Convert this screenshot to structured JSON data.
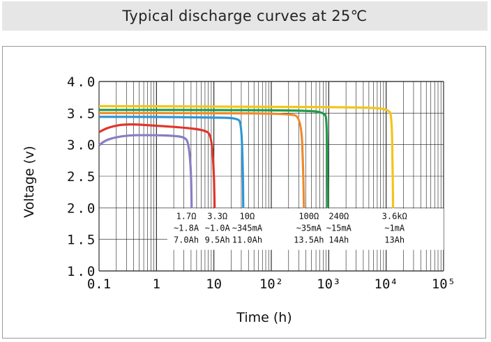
{
  "header": {
    "title": "Typical discharge curves at 25℃"
  },
  "colors": {
    "purple": "#8a7cc4",
    "red": "#e0352b",
    "blue": "#2e96d6",
    "orange": "#ee8a2a",
    "green": "#1f9a4a",
    "yellow": "#f3c41a",
    "grid": "#1a1a1a"
  },
  "chart_data": {
    "type": "line",
    "title": "Typical discharge curves at 25℃",
    "xlabel": "Time (h)",
    "ylabel": "Voltage (v)",
    "xscale": "log",
    "xlim": [
      0.1,
      100000
    ],
    "ylim": [
      1.0,
      4.0
    ],
    "x_tick_labels": [
      "0.1",
      "1",
      "10",
      "10²",
      "10³",
      "10⁴",
      "10⁵"
    ],
    "y_tick_labels": [
      "4.0",
      "3.5",
      "3.0",
      "2.5",
      "2.0",
      "1.5",
      "1.0"
    ],
    "series": [
      {
        "name": "1.7Ω ~1.8A 7.0Ah",
        "color": "purple",
        "points": [
          [
            0.1,
            2.99
          ],
          [
            0.13,
            3.07
          ],
          [
            0.2,
            3.12
          ],
          [
            0.35,
            3.15
          ],
          [
            0.6,
            3.15
          ],
          [
            1.0,
            3.15
          ],
          [
            2.0,
            3.14
          ],
          [
            3.0,
            3.12
          ],
          [
            3.6,
            3.05
          ],
          [
            4.0,
            2.6
          ],
          [
            4.1,
            2.0
          ]
        ]
      },
      {
        "name": "3.3Ω ~1.0A 9.5Ah",
        "color": "red",
        "points": [
          [
            0.1,
            3.2
          ],
          [
            0.15,
            3.28
          ],
          [
            0.3,
            3.33
          ],
          [
            1.0,
            3.3
          ],
          [
            3.0,
            3.27
          ],
          [
            7.0,
            3.23
          ],
          [
            9.0,
            3.15
          ],
          [
            10.0,
            2.6
          ],
          [
            10.3,
            2.0
          ]
        ]
      },
      {
        "name": "10Ω ~345mA 11.0Ah",
        "color": "blue",
        "points": [
          [
            0.1,
            3.44
          ],
          [
            1.0,
            3.44
          ],
          [
            10.0,
            3.43
          ],
          [
            25.0,
            3.42
          ],
          [
            30.0,
            3.35
          ],
          [
            32.0,
            2.6
          ],
          [
            32.5,
            2.0
          ]
        ]
      },
      {
        "name": "100Ω ~35mA 13.5Ah",
        "color": "orange",
        "points": [
          [
            0.1,
            3.5
          ],
          [
            10.0,
            3.5
          ],
          [
            200.0,
            3.49
          ],
          [
            330.0,
            3.44
          ],
          [
            360.0,
            2.6
          ],
          [
            370.0,
            2.0
          ]
        ]
      },
      {
        "name": "240Ω ~15mA 14Ah",
        "color": "green",
        "points": [
          [
            0.1,
            3.55
          ],
          [
            10.0,
            3.55
          ],
          [
            500.0,
            3.54
          ],
          [
            850.0,
            3.5
          ],
          [
            920.0,
            3.4
          ],
          [
            950.0,
            2.6
          ],
          [
            960.0,
            2.0
          ]
        ]
      },
      {
        "name": "3.6kΩ ~1mA 13Ah",
        "color": "yellow",
        "points": [
          [
            0.1,
            3.61
          ],
          [
            100.0,
            3.6
          ],
          [
            5000.0,
            3.59
          ],
          [
            11000.0,
            3.56
          ],
          [
            12500.0,
            3.45
          ],
          [
            13000.0,
            2.6
          ],
          [
            13200.0,
            2.0
          ]
        ]
      }
    ],
    "annotations": [
      {
        "x": 3.3,
        "lines": [
          "1.7Ω",
          "~1.8A",
          "7.0Ah"
        ]
      },
      {
        "x": 11.5,
        "lines": [
          "3.3Ω",
          "~1.0A",
          "9.5Ah"
        ]
      },
      {
        "x": 38,
        "lines": [
          "10Ω",
          "~345mA",
          "11.0Ah"
        ]
      },
      {
        "x": 450,
        "lines": [
          "100Ω",
          "~35mA",
          "13.5Ah"
        ]
      },
      {
        "x": 1500,
        "lines": [
          "240Ω",
          "~15mA",
          "14Ah"
        ]
      },
      {
        "x": 14000,
        "lines": [
          "3.6kΩ",
          "~1mA",
          "13Ah"
        ]
      }
    ]
  }
}
